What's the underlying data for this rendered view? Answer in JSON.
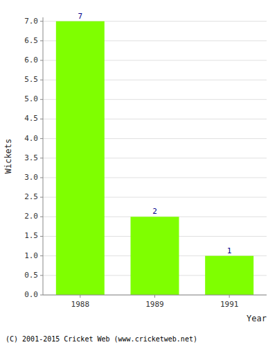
{
  "chart_data": {
    "type": "bar",
    "categories": [
      "1988",
      "1989",
      "1991"
    ],
    "values": [
      7,
      2,
      1
    ],
    "color": "#7FFF00",
    "x_label": "Year",
    "y_label": "Wickets",
    "ylim": [
      0,
      7.1
    ],
    "yticks": [
      {
        "value": 0,
        "label": "0.0"
      },
      0.5,
      {
        "value": 1,
        "label": "1.0"
      },
      1.5,
      {
        "value": 2,
        "label": "2.0"
      },
      2.5,
      {
        "value": 3,
        "label": "3.0"
      },
      3.5,
      {
        "value": 4,
        "label": "4.0"
      },
      4.5,
      {
        "value": 5,
        "label": "5.0"
      },
      5.5,
      {
        "value": 6,
        "label": "6.0"
      },
      6.5,
      {
        "value": 7,
        "label": "7.0"
      }
    ],
    "grid": true,
    "data_labels": true,
    "annotations": [
      "(C) 2001-2015 Cricket Web (www.cricketweb.net)"
    ]
  }
}
